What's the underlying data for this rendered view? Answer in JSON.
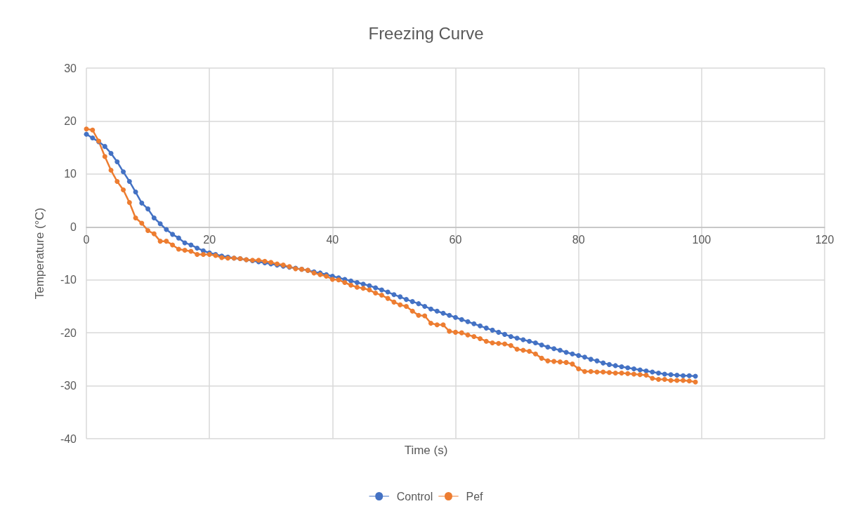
{
  "chart_data": {
    "type": "line",
    "title": "Freezing Curve",
    "xlabel": "Time (s)",
    "ylabel": "Temperature (°C)",
    "x": [
      0,
      1,
      2,
      3,
      4,
      5,
      6,
      7,
      8,
      9,
      10,
      11,
      12,
      13,
      14,
      15,
      16,
      17,
      18,
      19,
      20,
      21,
      22,
      23,
      24,
      25,
      26,
      27,
      28,
      29,
      30,
      31,
      32,
      33,
      34,
      35,
      36,
      37,
      38,
      39,
      40,
      41,
      42,
      43,
      44,
      45,
      46,
      47,
      48,
      49,
      50,
      51,
      52,
      53,
      54,
      55,
      56,
      57,
      58,
      59,
      60,
      61,
      62,
      63,
      64,
      65,
      66,
      67,
      68,
      69,
      70,
      71,
      72,
      73,
      74,
      75,
      76,
      77,
      78,
      79,
      80,
      81,
      82,
      83,
      84,
      85,
      86,
      87,
      88,
      89,
      90,
      91,
      92,
      93,
      94,
      95,
      96,
      97,
      98,
      99
    ],
    "series": [
      {
        "name": "Control",
        "color": "#4472c4",
        "values": [
          17.5,
          16.8,
          16.1,
          15.2,
          13.9,
          12.3,
          10.4,
          8.6,
          6.6,
          4.5,
          3.4,
          1.7,
          0.6,
          -0.5,
          -1.4,
          -2.1,
          -3.0,
          -3.4,
          -4.0,
          -4.5,
          -4.9,
          -5.2,
          -5.5,
          -5.7,
          -5.9,
          -6.0,
          -6.2,
          -6.4,
          -6.6,
          -6.8,
          -7.0,
          -7.2,
          -7.4,
          -7.6,
          -7.8,
          -8.0,
          -8.2,
          -8.5,
          -8.7,
          -9.0,
          -9.3,
          -9.6,
          -9.9,
          -10.2,
          -10.5,
          -10.8,
          -11.1,
          -11.5,
          -11.9,
          -12.3,
          -12.8,
          -13.2,
          -13.7,
          -14.1,
          -14.5,
          -15.0,
          -15.5,
          -15.9,
          -16.3,
          -16.7,
          -17.1,
          -17.5,
          -17.9,
          -18.3,
          -18.7,
          -19.1,
          -19.5,
          -19.9,
          -20.3,
          -20.7,
          -21.0,
          -21.3,
          -21.6,
          -21.9,
          -22.3,
          -22.7,
          -23.0,
          -23.3,
          -23.7,
          -24.0,
          -24.3,
          -24.6,
          -25.0,
          -25.3,
          -25.7,
          -26.0,
          -26.2,
          -26.4,
          -26.6,
          -26.8,
          -27.0,
          -27.2,
          -27.4,
          -27.6,
          -27.8,
          -27.9,
          -28.0,
          -28.1,
          -28.1,
          -28.2
        ]
      },
      {
        "name": "Pef",
        "color": "#ed7d31",
        "values": [
          18.5,
          18.3,
          16.2,
          13.3,
          10.7,
          8.6,
          7.0,
          4.6,
          1.7,
          0.7,
          -0.7,
          -1.3,
          -2.7,
          -2.7,
          -3.4,
          -4.2,
          -4.4,
          -4.6,
          -5.2,
          -5.2,
          -5.2,
          -5.4,
          -5.8,
          -5.9,
          -5.9,
          -6.0,
          -6.2,
          -6.3,
          -6.3,
          -6.5,
          -6.7,
          -7.0,
          -7.2,
          -7.5,
          -7.9,
          -8.0,
          -8.2,
          -8.7,
          -9.0,
          -9.3,
          -9.9,
          -10.0,
          -10.5,
          -11.0,
          -11.4,
          -11.6,
          -11.9,
          -12.5,
          -12.9,
          -13.5,
          -14.2,
          -14.7,
          -15.0,
          -15.9,
          -16.7,
          -16.8,
          -18.2,
          -18.5,
          -18.5,
          -19.7,
          -19.9,
          -20.0,
          -20.4,
          -20.7,
          -21.1,
          -21.6,
          -21.9,
          -22.0,
          -22.1,
          -22.4,
          -23.1,
          -23.3,
          -23.5,
          -24.0,
          -24.8,
          -25.3,
          -25.4,
          -25.5,
          -25.6,
          -25.9,
          -26.8,
          -27.3,
          -27.3,
          -27.4,
          -27.4,
          -27.5,
          -27.6,
          -27.6,
          -27.7,
          -27.8,
          -27.9,
          -28.0,
          -28.6,
          -28.8,
          -28.8,
          -29.0,
          -29.0,
          -29.0,
          -29.1,
          -29.3
        ]
      }
    ],
    "xlim": [
      0,
      120
    ],
    "xticks": [
      0,
      20,
      40,
      60,
      80,
      100,
      120
    ],
    "ylim": [
      -40,
      30
    ],
    "yticks": [
      -40,
      -30,
      -20,
      -10,
      0,
      10,
      20,
      30
    ],
    "grid": true,
    "legend": "bottom",
    "marker": "circle",
    "line_style": "solid"
  }
}
